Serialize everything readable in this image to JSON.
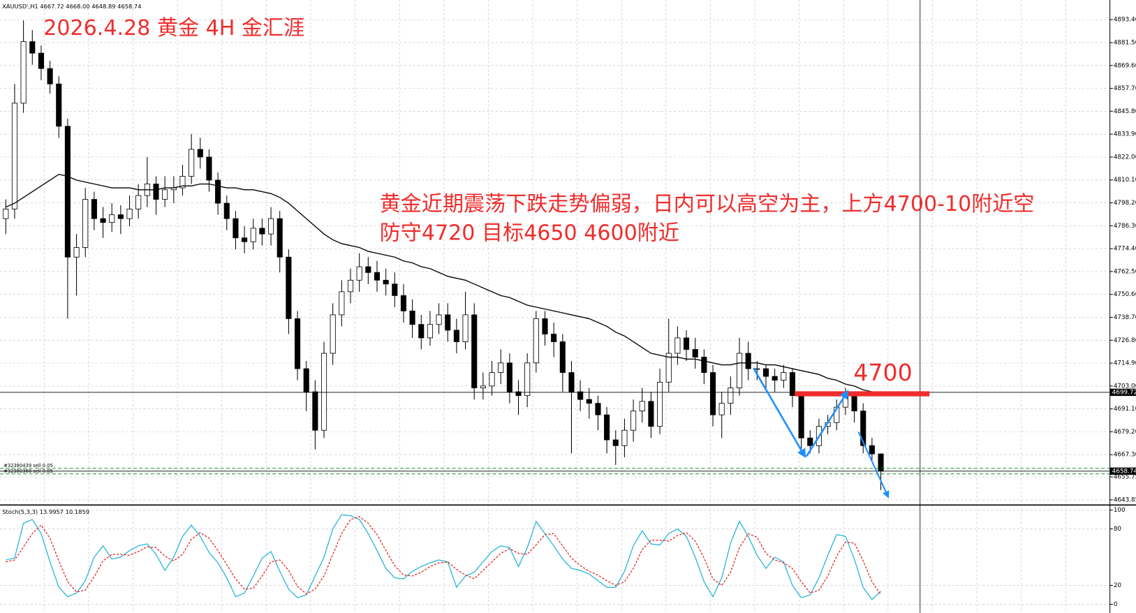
{
  "chart_data": [
    {
      "type": "candlestick",
      "title": "XAUUSD',H1 4667.72 4668.00 4648.89 4658.74",
      "annotations": [
        "2026.4.28 黄金 4H 金汇涯",
        "黄金近期震荡下跌走势偏弱，日内可以高空为主，上方4700-10附近空",
        "防守4720 目标4650 4600附近",
        "4700"
      ],
      "open": [
        4790,
        4795,
        4850,
        4882,
        4876,
        4868,
        4860,
        4838,
        4770,
        4775,
        4800,
        4790,
        4788,
        4792,
        4790,
        4795,
        4802,
        4808,
        4800,
        4805,
        4806,
        4812,
        4826,
        4822,
        4810,
        4798,
        4790,
        4780,
        4778,
        4785,
        4782,
        4790,
        4770,
        4738,
        4712,
        4700,
        4680,
        4720,
        4740,
        4752,
        4758,
        4765,
        4762,
        4758,
        4756,
        4750,
        4742,
        4735,
        4728,
        4735,
        4740,
        4732,
        4726,
        4740,
        4702,
        4703,
        4710,
        4715,
        4700,
        4698,
        4715,
        4738,
        4730,
        4726,
        4710,
        4700,
        4696,
        4694,
        4688,
        4675,
        4672,
        4680,
        4690,
        4695,
        4682,
        4705,
        4720,
        4728,
        4722,
        4718,
        4710,
        4688,
        4694,
        4702,
        4720,
        4712,
        4712,
        4708,
        4706,
        4710,
        4698,
        4676,
        4672,
        4682,
        4684,
        4692,
        4698,
        4690,
        4672,
        4667.72
      ],
      "high": [
        4800,
        4860,
        4893,
        4888,
        4880,
        4872,
        4864,
        4842,
        4782,
        4806,
        4804,
        4796,
        4798,
        4797,
        4802,
        4808,
        4822,
        4812,
        4812,
        4812,
        4818,
        4834,
        4832,
        4826,
        4814,
        4802,
        4794,
        4786,
        4790,
        4790,
        4796,
        4794,
        4774,
        4742,
        4716,
        4706,
        4726,
        4746,
        4758,
        4764,
        4772,
        4770,
        4768,
        4764,
        4762,
        4756,
        4748,
        4740,
        4742,
        4746,
        4746,
        4738,
        4752,
        4746,
        4710,
        4716,
        4722,
        4720,
        4706,
        4720,
        4742,
        4742,
        4736,
        4730,
        4716,
        4706,
        4702,
        4698,
        4692,
        4680,
        4686,
        4696,
        4702,
        4700,
        4712,
        4738,
        4734,
        4732,
        4728,
        4722,
        4714,
        4700,
        4708,
        4728,
        4726,
        4716,
        4714,
        4712,
        4714,
        4712,
        4700,
        4680,
        4686,
        4688,
        4696,
        4702,
        4700,
        4694,
        4676,
        4668
      ],
      "low": [
        4782,
        4790,
        4845,
        4870,
        4862,
        4855,
        4832,
        4738,
        4750,
        4770,
        4784,
        4780,
        4783,
        4782,
        4786,
        4790,
        4796,
        4792,
        4796,
        4798,
        4802,
        4808,
        4816,
        4804,
        4792,
        4784,
        4774,
        4772,
        4774,
        4776,
        4776,
        4762,
        4730,
        4706,
        4690,
        4670,
        4676,
        4714,
        4734,
        4746,
        4752,
        4756,
        4752,
        4750,
        4744,
        4736,
        4728,
        4722,
        4724,
        4730,
        4726,
        4720,
        4722,
        4696,
        4696,
        4698,
        4704,
        4694,
        4688,
        4692,
        4710,
        4724,
        4718,
        4700,
        4668,
        4690,
        4686,
        4680,
        4668,
        4662,
        4666,
        4674,
        4684,
        4676,
        4678,
        4700,
        4714,
        4716,
        4712,
        4704,
        4682,
        4676,
        4688,
        4698,
        4706,
        4706,
        4702,
        4700,
        4702,
        4692,
        4670,
        4668,
        4668,
        4678,
        4680,
        4688,
        4684,
        4668,
        4664,
        4648.89
      ],
      "close": [
        4795,
        4850,
        4882,
        4876,
        4868,
        4860,
        4838,
        4770,
        4775,
        4800,
        4790,
        4788,
        4792,
        4790,
        4795,
        4802,
        4808,
        4800,
        4805,
        4806,
        4812,
        4826,
        4822,
        4810,
        4798,
        4790,
        4780,
        4778,
        4785,
        4782,
        4790,
        4770,
        4738,
        4712,
        4700,
        4680,
        4720,
        4740,
        4752,
        4758,
        4765,
        4762,
        4758,
        4756,
        4750,
        4742,
        4735,
        4728,
        4735,
        4740,
        4732,
        4726,
        4740,
        4702,
        4703,
        4710,
        4715,
        4700,
        4698,
        4715,
        4738,
        4730,
        4726,
        4710,
        4700,
        4696,
        4694,
        4688,
        4675,
        4672,
        4680,
        4690,
        4695,
        4682,
        4705,
        4720,
        4728,
        4722,
        4718,
        4710,
        4688,
        4694,
        4702,
        4720,
        4712,
        4712,
        4708,
        4706,
        4710,
        4698,
        4676,
        4672,
        4682,
        4684,
        4692,
        4698,
        4690,
        4672,
        4667.72,
        4658.74
      ],
      "up_color": "#ffffff",
      "down_color": "#000000",
      "ma": {
        "color": "#000000",
        "values": [
          4796,
          4798,
          4801,
          4804,
          4807,
          4810,
          4813,
          4812,
          4810,
          4809,
          4808,
          4807,
          4806,
          4806,
          4806,
          4805,
          4805,
          4805,
          4806,
          4806,
          4807,
          4807,
          4808,
          4808,
          4807,
          4806,
          4806,
          4805,
          4805,
          4804,
          4803,
          4801,
          4798,
          4794,
          4790,
          4786,
          4782,
          4779,
          4777,
          4776,
          4775,
          4773,
          4772,
          4771,
          4770,
          4768,
          4767,
          4765,
          4764,
          4762,
          4760,
          4759,
          4758,
          4756,
          4754,
          4752,
          4750,
          4749,
          4747,
          4745,
          4744,
          4743,
          4742,
          4741,
          4740,
          4739,
          4738,
          4736,
          4734,
          4731,
          4729,
          4726,
          4723,
          4720,
          4719,
          4718,
          4718,
          4717,
          4717,
          4716,
          4715,
          4714,
          4714,
          4715,
          4715,
          4715,
          4714,
          4714,
          4713,
          4712,
          4711,
          4710,
          4709,
          4707,
          4706,
          4704,
          4703,
          4701,
          4700,
          4699
        ]
      },
      "ylim": [
        4641.9,
        4903.6
      ],
      "yticks": [
        {
          "value": 4893.4,
          "label": "4893.40"
        },
        {
          "value": 4881.5,
          "label": "4881.50"
        },
        {
          "value": 4869.6,
          "label": "4869.60"
        },
        {
          "value": 4857.7,
          "label": "4857.70"
        },
        {
          "value": 4845.8,
          "label": "4845.80"
        },
        {
          "value": 4833.9,
          "label": "4833.90"
        },
        {
          "value": 4822,
          "label": "4822.00"
        },
        {
          "value": 4810.1,
          "label": "4810.10"
        },
        {
          "value": 4798.2,
          "label": "4798.20"
        },
        {
          "value": 4786.3,
          "label": "4786.30"
        },
        {
          "value": 4774.4,
          "label": "4774.40"
        },
        {
          "value": 4762.5,
          "label": "4762.50"
        },
        {
          "value": 4750.6,
          "label": "4750.60"
        },
        {
          "value": 4738.7,
          "label": "4738.70"
        },
        {
          "value": 4726.8,
          "label": "4726.80"
        },
        {
          "value": 4714.9,
          "label": "4714.90"
        },
        {
          "value": 4703,
          "label": "4703.00"
        },
        {
          "value": 4691.1,
          "label": "4691.10"
        },
        {
          "value": 4679.2,
          "label": "4679.20"
        },
        {
          "value": 4667.3,
          "label": "4667.30"
        },
        4655.75,
        4643.85
      ],
      "grid": true,
      "price_lines": [
        4699.72,
        4658.74
      ],
      "order_lines": [
        {
          "label": "#32380439 sell 0.05",
          "value": 4660.2,
          "color": "#008000"
        },
        {
          "label": "#32380368 sell 0.05",
          "value": 4657.3,
          "color": "#008000"
        }
      ]
    },
    {
      "type": "line",
      "title": "Stoch(5,3,3) 13.9957 10.1859",
      "series": [
        {
          "color": "#1fb3d6",
          "dash": false,
          "values": [
            47,
            49,
            86,
            90,
            75,
            45,
            18,
            8,
            12,
            25,
            50,
            62,
            48,
            50,
            57,
            62,
            64,
            53,
            36,
            50,
            72,
            84,
            72,
            55,
            44,
            28,
            8,
            12,
            30,
            49,
            56,
            35,
            16,
            7,
            10,
            30,
            50,
            80,
            95,
            94,
            90,
            75,
            57,
            38,
            28,
            27,
            35,
            40,
            44,
            47,
            45,
            18,
            30,
            34,
            45,
            56,
            62,
            60,
            40,
            60,
            88,
            75,
            62,
            48,
            38,
            36,
            32,
            25,
            18,
            18,
            35,
            62,
            78,
            64,
            63,
            75,
            80,
            72,
            50,
            24,
            8,
            28,
            65,
            88,
            72,
            52,
            38,
            50,
            45,
            20,
            7,
            10,
            28,
            52,
            74,
            72,
            48,
            18,
            5,
            13.9957
          ]
        },
        {
          "color": "#e02020",
          "dash": true,
          "values": [
            45,
            47,
            61,
            75,
            84,
            70,
            46,
            24,
            13,
            15,
            29,
            46,
            53,
            53,
            52,
            56,
            61,
            60,
            51,
            46,
            53,
            69,
            76,
            70,
            57,
            42,
            27,
            16,
            17,
            30,
            45,
            47,
            36,
            19,
            11,
            16,
            30,
            53,
            75,
            90,
            93,
            86,
            74,
            57,
            41,
            31,
            30,
            34,
            40,
            44,
            45,
            37,
            31,
            27,
            36,
            45,
            54,
            59,
            54,
            53,
            63,
            74,
            75,
            62,
            49,
            41,
            35,
            31,
            25,
            20,
            24,
            38,
            58,
            68,
            68,
            67,
            73,
            76,
            67,
            49,
            27,
            20,
            34,
            60,
            75,
            71,
            54,
            47,
            44,
            38,
            24,
            12,
            15,
            30,
            51,
            66,
            65,
            46,
            24,
            10.1859
          ]
        }
      ],
      "ylim": [
        -9.2,
        103.8
      ],
      "yticks": [
        100,
        80,
        20,
        0
      ],
      "grid": true
    }
  ]
}
